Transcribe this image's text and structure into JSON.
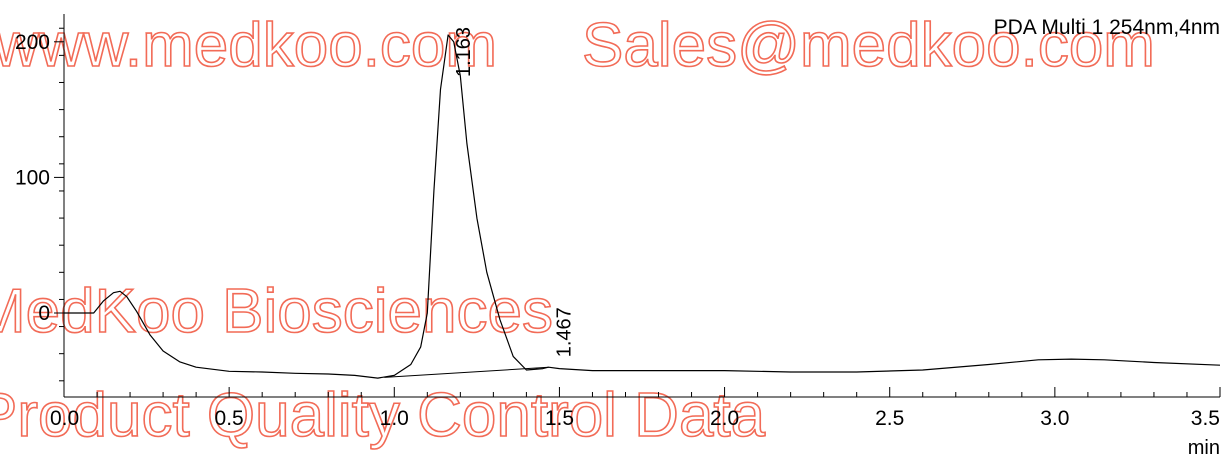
{
  "watermarks": {
    "line1": "www.medkoo.com",
    "line1b": "Sales@medkoo.com",
    "line2": "MedKoo Biosciences",
    "line3": "Product Quality Control Data",
    "color": "#f26b57"
  },
  "chart_data": {
    "type": "line",
    "title": "PDA Multi 1 254nm,4nm",
    "xlabel": "min",
    "ylabel": "",
    "xlim": [
      0.0,
      3.5
    ],
    "ylim": [
      -60,
      220
    ],
    "x_ticks": [
      "0.0",
      "0.5",
      "1.0",
      "1.5",
      "2.0",
      "2.5",
      "3.0",
      "3.5"
    ],
    "y_ticks": [
      "0",
      "100",
      "200"
    ],
    "grid": false,
    "line_color": "#000000",
    "series": [
      {
        "x": [
          0.0,
          0.09,
          0.12,
          0.15,
          0.17,
          0.19,
          0.22,
          0.26,
          0.3,
          0.35,
          0.4,
          0.5,
          0.6,
          0.7,
          0.8,
          0.88,
          0.95,
          1.0,
          1.05,
          1.08,
          1.1,
          1.12,
          1.14,
          1.163,
          1.18,
          1.2,
          1.22,
          1.25,
          1.28,
          1.32,
          1.36,
          1.4,
          1.45,
          1.467,
          1.5,
          1.6,
          1.8,
          2.0,
          2.2,
          2.4,
          2.6,
          2.8,
          2.95,
          3.05,
          3.15,
          3.3,
          3.5
        ],
        "y": [
          0,
          0,
          9,
          15,
          16,
          12,
          1,
          -16,
          -28,
          -36,
          -40,
          -43,
          -43.5,
          -44.5,
          -45,
          -46,
          -48,
          -46,
          -38,
          -25,
          0,
          90,
          165,
          205,
          200,
          175,
          125,
          70,
          30,
          -5,
          -32,
          -42,
          -41,
          -40,
          -41,
          -42.5,
          -42.5,
          -42.5,
          -43.5,
          -43.5,
          -42,
          -38,
          -34.5,
          -34,
          -34.5,
          -36.5,
          -38.5
        ]
      }
    ],
    "baseline": {
      "x": [
        0.97,
        1.467
      ],
      "y": [
        -47.5,
        -40
      ]
    },
    "peaks": [
      {
        "label": "1.163",
        "x": 1.163,
        "y": 205
      },
      {
        "label": "1.467",
        "x": 1.467,
        "y": -40
      }
    ]
  }
}
